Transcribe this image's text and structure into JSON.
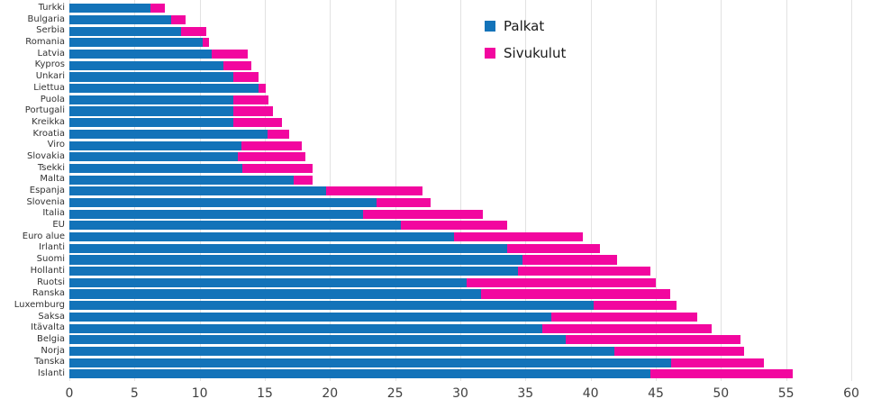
{
  "chart_data": {
    "type": "bar",
    "orientation": "horizontal",
    "stacked": true,
    "title": "",
    "xlabel": "",
    "ylabel": "",
    "xlim": [
      0,
      60
    ],
    "xticks": [
      0,
      5,
      10,
      15,
      20,
      25,
      30,
      35,
      40,
      45,
      50,
      55,
      60
    ],
    "grid": "vertical-light-gray",
    "legend_position": "upper-middle",
    "categories": [
      "Turkki",
      "Bulgaria",
      "Serbia",
      "Romania",
      "Latvia",
      "Kypros",
      "Unkari",
      "Liettua",
      "Puola",
      "Portugali",
      "Kreikka",
      "Kroatia",
      "Viro",
      "Slovakia",
      "Tsekki",
      "Malta",
      "Espanja",
      "Slovenia",
      "Italia",
      "EU",
      "Euro alue",
      "Irlanti",
      "Suomi",
      "Hollanti",
      "Ruotsi",
      "Ranska",
      "Luxemburg",
      "Saksa",
      "Itävalta",
      "Belgia",
      "Norja",
      "Tanska",
      "Islanti"
    ],
    "series": [
      {
        "name": "Palkat",
        "color": "#1373b9",
        "values": [
          6.2,
          7.8,
          8.6,
          10.2,
          10.9,
          11.8,
          12.6,
          14.5,
          12.6,
          12.6,
          12.6,
          15.2,
          13.2,
          12.9,
          13.3,
          17.2,
          19.7,
          23.6,
          22.5,
          25.4,
          29.5,
          33.6,
          34.8,
          34.4,
          30.5,
          31.6,
          40.2,
          37.0,
          36.3,
          38.1,
          41.8,
          46.2,
          44.6
        ]
      },
      {
        "name": "Sivukulut",
        "color": "#f2079f",
        "values": [
          1.1,
          1.1,
          1.9,
          0.5,
          2.8,
          2.2,
          1.9,
          0.6,
          2.7,
          3.0,
          3.7,
          1.7,
          4.6,
          5.2,
          5.4,
          1.5,
          7.4,
          4.1,
          9.2,
          8.2,
          9.9,
          7.1,
          7.2,
          10.2,
          14.5,
          14.5,
          6.4,
          11.2,
          13.0,
          13.4,
          10.0,
          7.1,
          10.9
        ]
      }
    ]
  },
  "legend": {
    "items": [
      {
        "label": "Palkat",
        "color": "#1373b9"
      },
      {
        "label": "Sivukulut",
        "color": "#f2079f"
      }
    ]
  },
  "colors": {
    "palkat": "#1373b9",
    "sivukulut": "#f2079f",
    "gridline": "#e2e2e2",
    "tick_text": "#404040",
    "label_text": "#333333"
  }
}
